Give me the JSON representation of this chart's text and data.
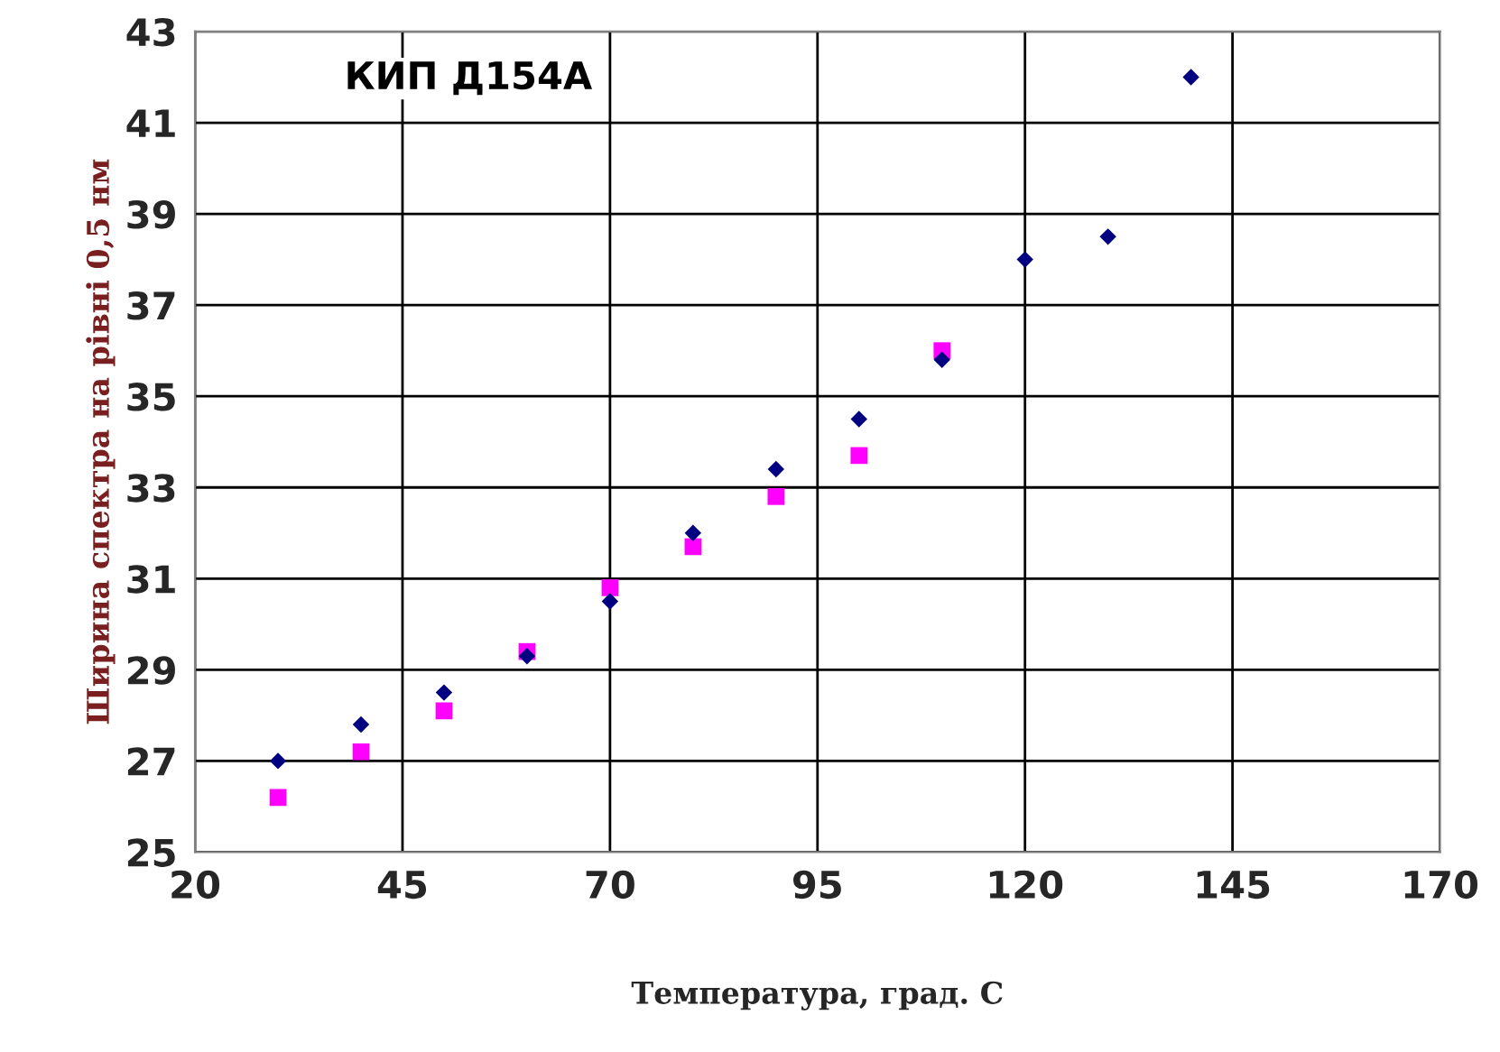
{
  "chart_data": {
    "type": "scatter",
    "xlabel": "Температура, град. С",
    "ylabel": "Ширина спектра на рівні 0,5 нм",
    "xlim": [
      20,
      170
    ],
    "xticks": [
      20,
      45,
      70,
      95,
      120,
      145,
      170
    ],
    "ylim": [
      25,
      43
    ],
    "yticks": [
      25,
      27,
      29,
      31,
      33,
      35,
      37,
      39,
      41,
      43
    ],
    "grid": true,
    "legend": false,
    "series": [
      {
        "name": "КИП Д154А",
        "color": "#000080",
        "marker": "diamond",
        "x": [
          30,
          40,
          50,
          60,
          70,
          80,
          90,
          100,
          110,
          120,
          130,
          140
        ],
        "values": [
          27,
          27.8,
          28.5,
          29.3,
          30.5,
          32,
          33.4,
          34.5,
          35.8,
          38,
          38.5,
          42
        ]
      },
      {
        "color": "#ff00ff",
        "marker": "square",
        "x": [
          30,
          40,
          50,
          60,
          70,
          80,
          90,
          100,
          110
        ],
        "values": [
          26.2,
          27.2,
          28.1,
          29.4,
          30.8,
          31.7,
          32.8,
          33.7,
          36
        ]
      }
    ]
  }
}
